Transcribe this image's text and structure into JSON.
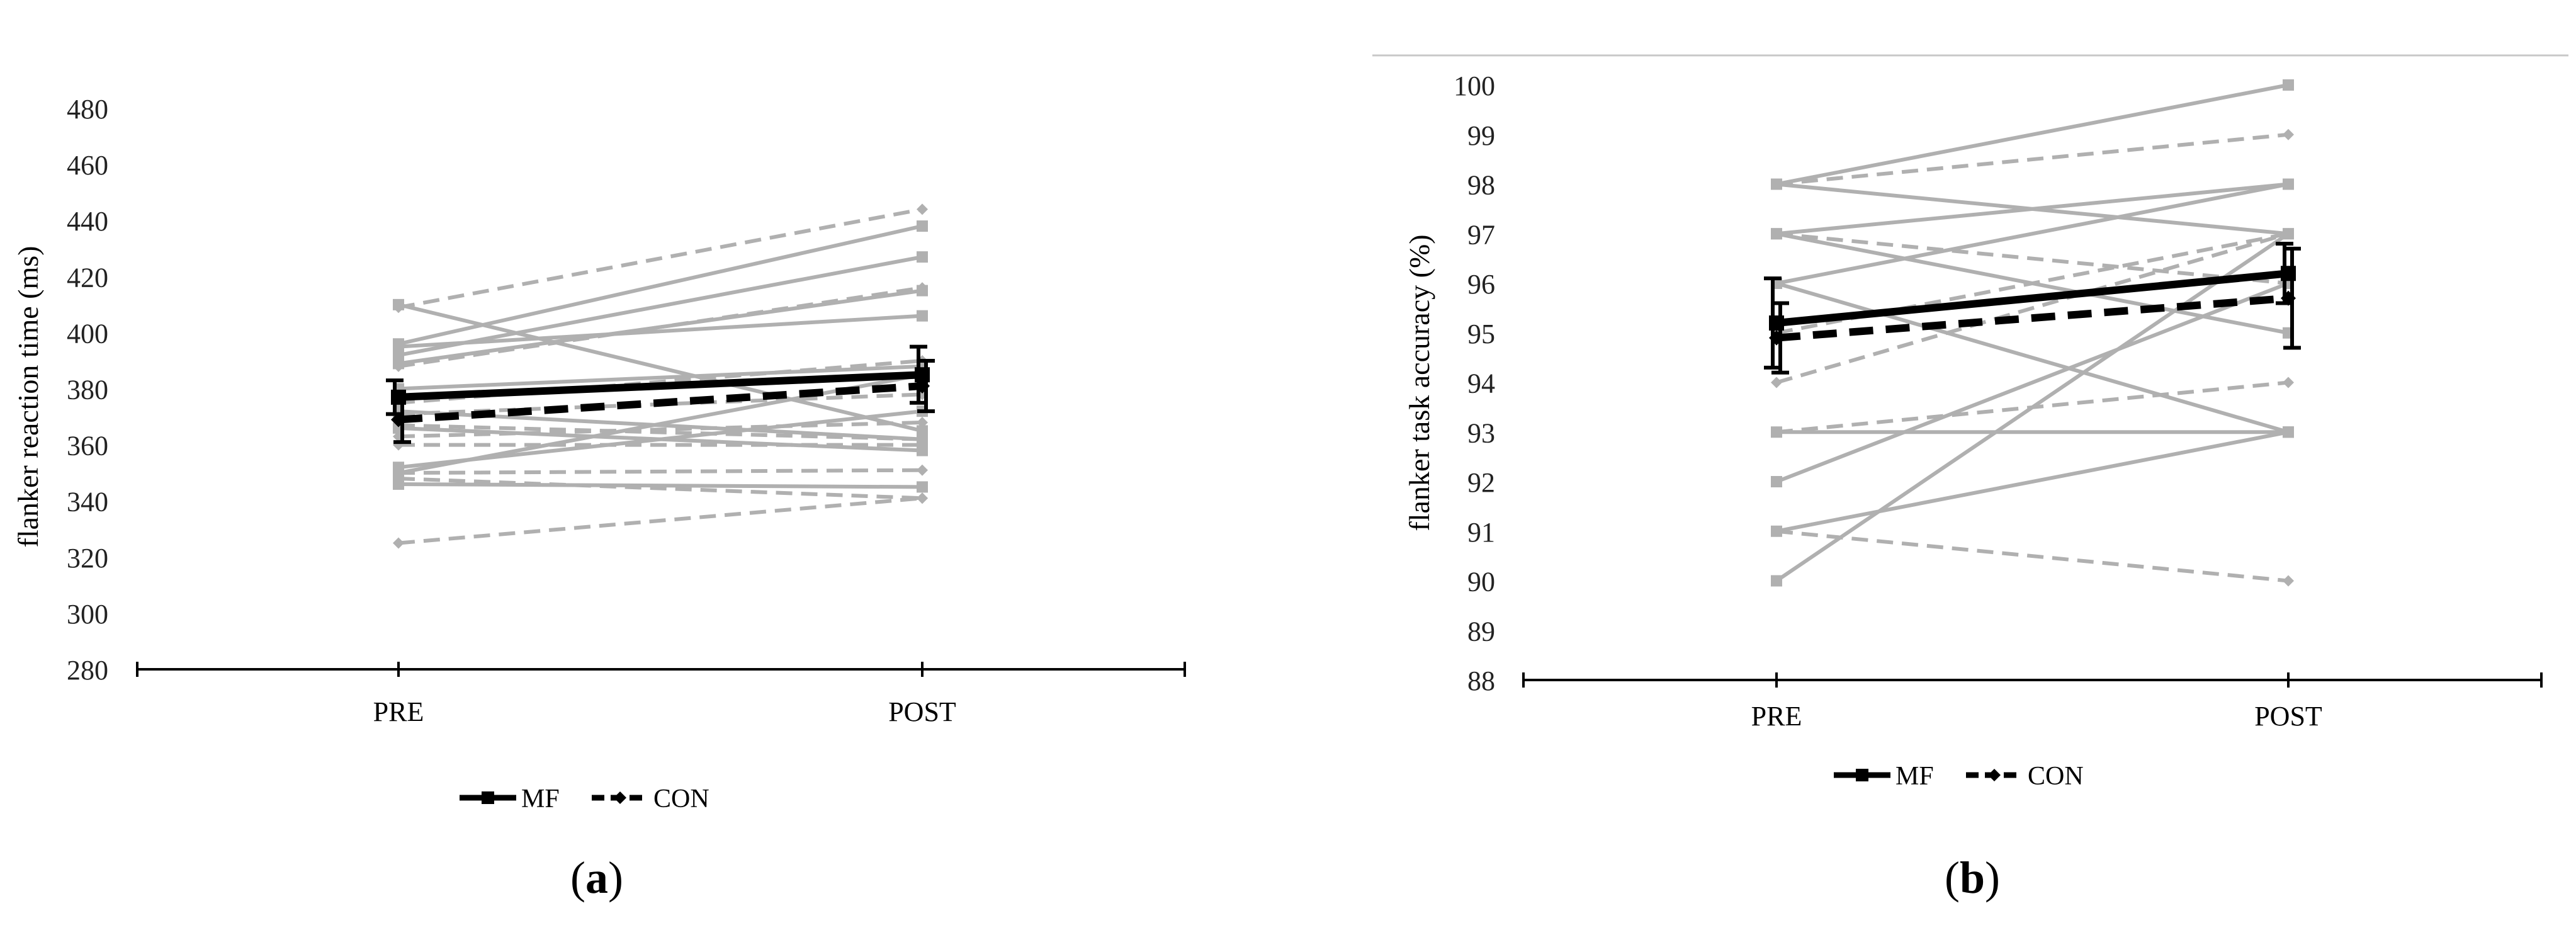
{
  "panel_labels": [
    {
      "open": "(",
      "letter": "a",
      "close": ")"
    },
    {
      "open": "(",
      "letter": "b",
      "close": ")"
    }
  ],
  "chart_data": [
    {
      "type": "line",
      "ylabel": "flanker reaction time (ms)",
      "xlabel": "",
      "categories": [
        "PRE",
        "POST"
      ],
      "ylim": [
        280,
        480
      ],
      "yticks": [
        280,
        300,
        320,
        340,
        360,
        380,
        400,
        420,
        440,
        460,
        480
      ],
      "grid": false,
      "legend": {
        "placement": "bottom-center",
        "entries": [
          "MF",
          "CON"
        ]
      },
      "series": [
        {
          "name": "MF",
          "values": [
            377,
            385
          ],
          "error": [
            6,
            10
          ],
          "color": "#000000",
          "style": "solid",
          "marker": "square"
        },
        {
          "name": "CON",
          "values": [
            369,
            381
          ],
          "error": [
            8,
            9
          ],
          "color": "#000000",
          "style": "dashed",
          "marker": "diamond"
        }
      ],
      "individuals": [
        {
          "group": "MF",
          "values": [
            410,
            365
          ]
        },
        {
          "group": "MF",
          "values": [
            396,
            438
          ]
        },
        {
          "group": "MF",
          "values": [
            392,
            427
          ]
        },
        {
          "group": "MF",
          "values": [
            389,
            415
          ]
        },
        {
          "group": "MF",
          "values": [
            395,
            406
          ]
        },
        {
          "group": "MF",
          "values": [
            380,
            388
          ]
        },
        {
          "group": "MF",
          "values": [
            372,
            362
          ]
        },
        {
          "group": "MF",
          "values": [
            366,
            358
          ]
        },
        {
          "group": "MF",
          "values": [
            350,
            385
          ]
        },
        {
          "group": "MF",
          "values": [
            352,
            372
          ]
        },
        {
          "group": "MF",
          "values": [
            346,
            345
          ]
        },
        {
          "group": "CON",
          "values": [
            409,
            444
          ]
        },
        {
          "group": "CON",
          "values": [
            388,
            416
          ]
        },
        {
          "group": "CON",
          "values": [
            375,
            390
          ]
        },
        {
          "group": "CON",
          "values": [
            371,
            378
          ]
        },
        {
          "group": "CON",
          "values": [
            367,
            362
          ]
        },
        {
          "group": "CON",
          "values": [
            363,
            368
          ]
        },
        {
          "group": "CON",
          "values": [
            360,
            360
          ]
        },
        {
          "group": "CON",
          "values": [
            350,
            351
          ]
        },
        {
          "group": "CON",
          "values": [
            348,
            341
          ]
        },
        {
          "group": "CON",
          "values": [
            325,
            341
          ]
        }
      ],
      "colors": {
        "individual": "#b0b0b0",
        "mean": "#000000",
        "axis": "#000000"
      }
    },
    {
      "type": "line",
      "ylabel": "flanker task accuracy (%)",
      "xlabel": "",
      "categories": [
        "PRE",
        "POST"
      ],
      "ylim": [
        88,
        100
      ],
      "yticks": [
        88,
        89,
        90,
        91,
        92,
        93,
        94,
        95,
        96,
        97,
        98,
        99,
        100
      ],
      "grid": false,
      "legend": {
        "placement": "bottom-center",
        "entries": [
          "MF",
          "CON"
        ]
      },
      "series": [
        {
          "name": "MF",
          "values": [
            95.2,
            96.2
          ],
          "error": [
            0.9,
            0.6
          ],
          "color": "#000000",
          "style": "solid",
          "marker": "square"
        },
        {
          "name": "CON",
          "values": [
            94.9,
            95.7
          ],
          "error": [
            0.7,
            1.0
          ],
          "color": "#000000",
          "style": "dashed",
          "marker": "diamond"
        }
      ],
      "individuals": [
        {
          "group": "MF",
          "values": [
            98,
            100
          ]
        },
        {
          "group": "MF",
          "values": [
            98,
            97
          ]
        },
        {
          "group": "MF",
          "values": [
            97,
            98
          ]
        },
        {
          "group": "MF",
          "values": [
            97,
            95
          ]
        },
        {
          "group": "MF",
          "values": [
            96,
            98
          ]
        },
        {
          "group": "MF",
          "values": [
            96,
            93
          ]
        },
        {
          "group": "MF",
          "values": [
            93,
            93
          ]
        },
        {
          "group": "MF",
          "values": [
            92,
            96
          ]
        },
        {
          "group": "MF",
          "values": [
            91,
            93
          ]
        },
        {
          "group": "MF",
          "values": [
            90,
            97
          ]
        },
        {
          "group": "CON",
          "values": [
            98,
            99
          ]
        },
        {
          "group": "CON",
          "values": [
            97,
            96
          ]
        },
        {
          "group": "CON",
          "values": [
            95,
            97
          ]
        },
        {
          "group": "CON",
          "values": [
            94,
            97
          ]
        },
        {
          "group": "CON",
          "values": [
            93,
            94
          ]
        },
        {
          "group": "CON",
          "values": [
            91,
            90
          ]
        }
      ],
      "colors": {
        "individual": "#b0b0b0",
        "mean": "#000000",
        "axis": "#000000"
      }
    }
  ]
}
